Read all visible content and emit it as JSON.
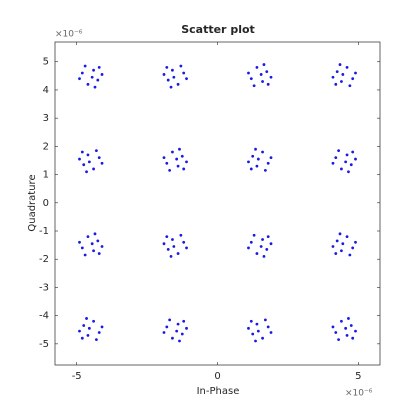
{
  "chart_data": {
    "type": "scatter",
    "title": "Scatter plot",
    "xlabel": "In-Phase",
    "ylabel": "Quadrature",
    "x_exponent": "×10⁻⁶",
    "y_exponent": "×10⁻⁶",
    "color": "#1a1ae6",
    "grid": false,
    "xlim": [
      -5.77,
      5.77
    ],
    "ylim": [
      -5.75,
      5.7
    ],
    "xticks": [
      -5,
      0,
      5
    ],
    "yticks": [
      -5,
      -4,
      -3,
      -2,
      -1,
      0,
      1,
      2,
      3,
      4,
      5
    ],
    "x": [
      -4.4,
      -4.8,
      -4.25,
      -4.6,
      -4.1,
      -4.7,
      -4.45,
      -4.2,
      -4.9,
      -4.35,
      -1.6,
      -1.2,
      -1.75,
      -1.4,
      -1.9,
      -1.3,
      -1.55,
      -1.8,
      -1.1,
      -1.65,
      1.6,
      1.2,
      1.75,
      1.4,
      1.9,
      1.3,
      1.55,
      1.8,
      1.1,
      1.65,
      4.4,
      4.8,
      4.25,
      4.6,
      4.1,
      4.7,
      4.45,
      4.2,
      4.9,
      4.35,
      -4.6,
      -4.2,
      -4.75,
      -4.4,
      -4.9,
      -4.3,
      -4.55,
      -4.8,
      -4.1,
      -4.65,
      -1.4,
      -1.8,
      -1.25,
      -1.6,
      -1.1,
      -1.7,
      -1.45,
      -1.2,
      -1.9,
      -1.35,
      1.4,
      1.8,
      1.25,
      1.6,
      1.1,
      1.7,
      1.45,
      1.2,
      1.9,
      1.35,
      4.6,
      4.2,
      4.75,
      4.4,
      4.9,
      4.3,
      4.55,
      4.8,
      4.1,
      4.65,
      -4.4,
      -4.8,
      -4.25,
      -4.6,
      -4.1,
      -4.7,
      -4.45,
      -4.2,
      -4.9,
      -4.35,
      -1.6,
      -1.2,
      -1.75,
      -1.4,
      -1.9,
      -1.3,
      -1.55,
      -1.8,
      -1.1,
      -1.65,
      1.6,
      1.2,
      1.75,
      1.4,
      1.9,
      1.3,
      1.55,
      1.8,
      1.1,
      1.65,
      4.4,
      4.8,
      4.25,
      4.6,
      4.1,
      4.7,
      4.45,
      4.2,
      4.9,
      4.35,
      -4.6,
      -4.2,
      -4.75,
      -4.4,
      -4.9,
      -4.3,
      -4.55,
      -4.8,
      -4.1,
      -4.65,
      -1.4,
      -1.8,
      -1.25,
      -1.6,
      -1.1,
      -1.7,
      -1.45,
      -1.2,
      -1.9,
      -1.35,
      1.4,
      1.8,
      1.25,
      1.6,
      1.1,
      1.7,
      1.45,
      1.2,
      1.9,
      1.35,
      4.6,
      4.2,
      4.75,
      4.4,
      4.9,
      4.3,
      4.55,
      4.8,
      4.1,
      4.65
    ],
    "y": [
      4.7,
      4.6,
      4.35,
      4.2,
      4.55,
      4.85,
      4.45,
      4.8,
      4.4,
      4.1,
      4.7,
      4.6,
      4.35,
      4.2,
      4.55,
      4.85,
      4.45,
      4.8,
      4.4,
      4.1,
      4.3,
      4.4,
      4.65,
      4.8,
      4.45,
      4.15,
      4.55,
      4.2,
      4.6,
      4.9,
      4.3,
      4.4,
      4.65,
      4.8,
      4.45,
      4.15,
      4.55,
      4.2,
      4.6,
      4.9,
      1.7,
      1.6,
      1.35,
      1.2,
      1.55,
      1.85,
      1.45,
      1.8,
      1.4,
      1.1,
      1.3,
      1.4,
      1.65,
      1.8,
      1.45,
      1.15,
      1.55,
      1.2,
      1.6,
      1.9,
      1.3,
      1.4,
      1.65,
      1.8,
      1.45,
      1.15,
      1.55,
      1.2,
      1.6,
      1.9,
      1.7,
      1.6,
      1.35,
      1.2,
      1.55,
      1.85,
      1.45,
      1.8,
      1.4,
      1.1,
      -1.7,
      -1.6,
      -1.35,
      -1.2,
      -1.55,
      -1.85,
      -1.45,
      -1.8,
      -1.4,
      -1.1,
      -1.3,
      -1.4,
      -1.65,
      -1.8,
      -1.45,
      -1.15,
      -1.55,
      -1.2,
      -1.6,
      -1.9,
      -1.3,
      -1.4,
      -1.65,
      -1.8,
      -1.45,
      -1.15,
      -1.55,
      -1.2,
      -1.6,
      -1.9,
      -1.7,
      -1.6,
      -1.35,
      -1.2,
      -1.55,
      -1.85,
      -1.45,
      -1.8,
      -1.4,
      -1.1,
      -4.7,
      -4.6,
      -4.35,
      -4.2,
      -4.55,
      -4.85,
      -4.45,
      -4.8,
      -4.4,
      -4.1,
      -4.3,
      -4.4,
      -4.65,
      -4.8,
      -4.45,
      -4.15,
      -4.55,
      -4.2,
      -4.6,
      -4.9,
      -4.3,
      -4.4,
      -4.65,
      -4.8,
      -4.45,
      -4.15,
      -4.55,
      -4.2,
      -4.6,
      -4.9,
      -4.7,
      -4.6,
      -4.35,
      -4.2,
      -4.55,
      -4.85,
      -4.45,
      -4.8,
      -4.4,
      -4.1
    ]
  }
}
